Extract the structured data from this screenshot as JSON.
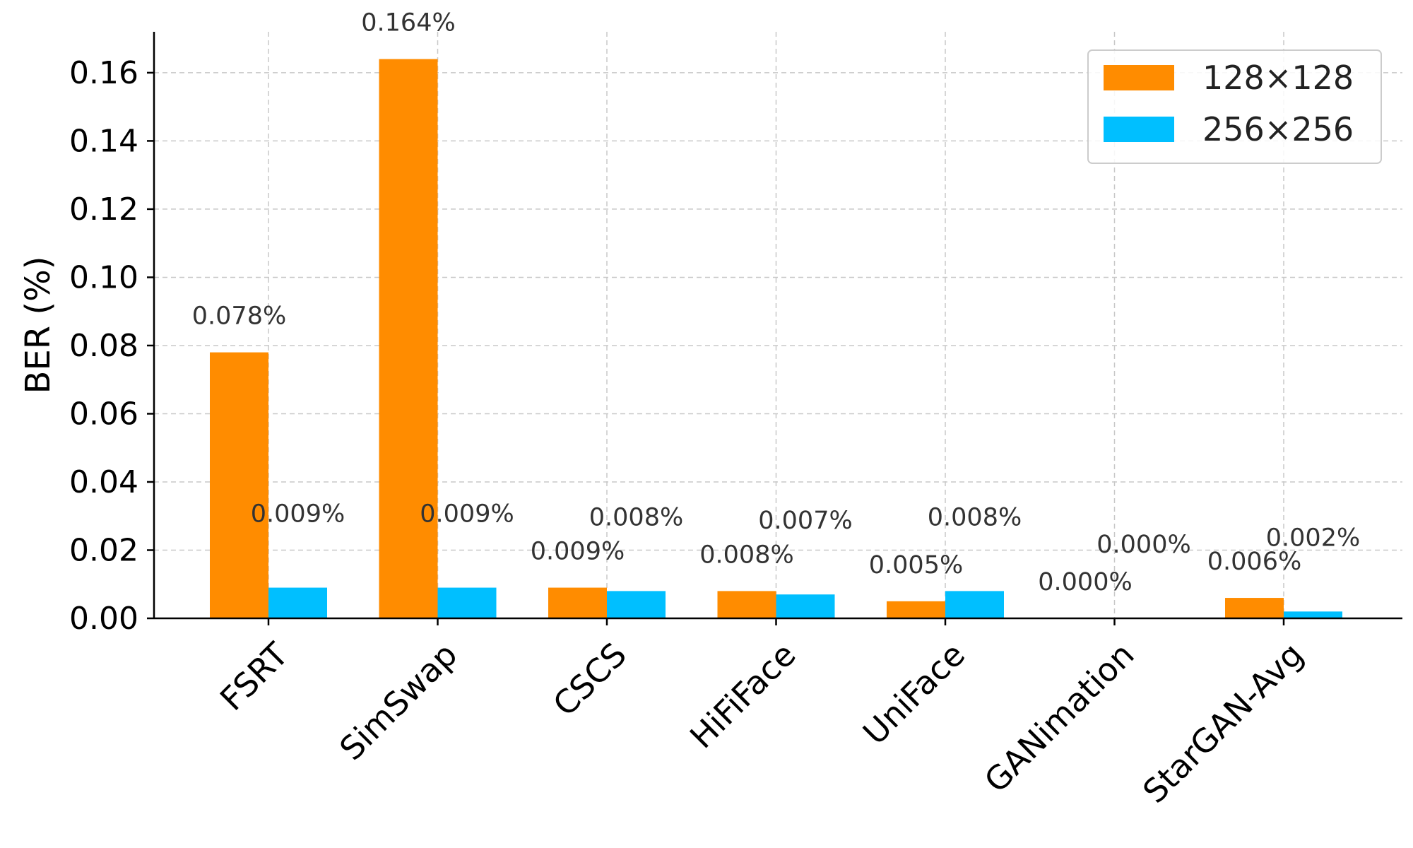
{
  "chart_data": {
    "type": "bar",
    "categories": [
      "FSRT",
      "SimSwap",
      "CSCS",
      "HiFiFace",
      "UniFace",
      "GANimation",
      "StarGAN-Avg"
    ],
    "series": [
      {
        "name": "128×128",
        "color": "#ff8c00",
        "values": [
          0.078,
          0.164,
          0.009,
          0.008,
          0.005,
          0.0,
          0.006
        ],
        "labels": [
          "0.078%",
          "0.164%",
          "0.009%",
          "0.008%",
          "0.005%",
          "0.000%",
          "0.006%"
        ]
      },
      {
        "name": "256×256",
        "color": "#00bfff",
        "values": [
          0.009,
          0.009,
          0.008,
          0.007,
          0.008,
          0.0,
          0.002
        ],
        "labels": [
          "0.009%",
          "0.009%",
          "0.008%",
          "0.007%",
          "0.008%",
          "0.000%",
          "0.002%"
        ]
      }
    ],
    "title": "",
    "xlabel": "",
    "ylabel": "BER (%)",
    "ylim": [
      0,
      0.172
    ],
    "yticks": [
      "0.00",
      "0.02",
      "0.04",
      "0.06",
      "0.08",
      "0.10",
      "0.12",
      "0.14",
      "0.16"
    ],
    "grid": true,
    "legend_position": "top-right"
  }
}
